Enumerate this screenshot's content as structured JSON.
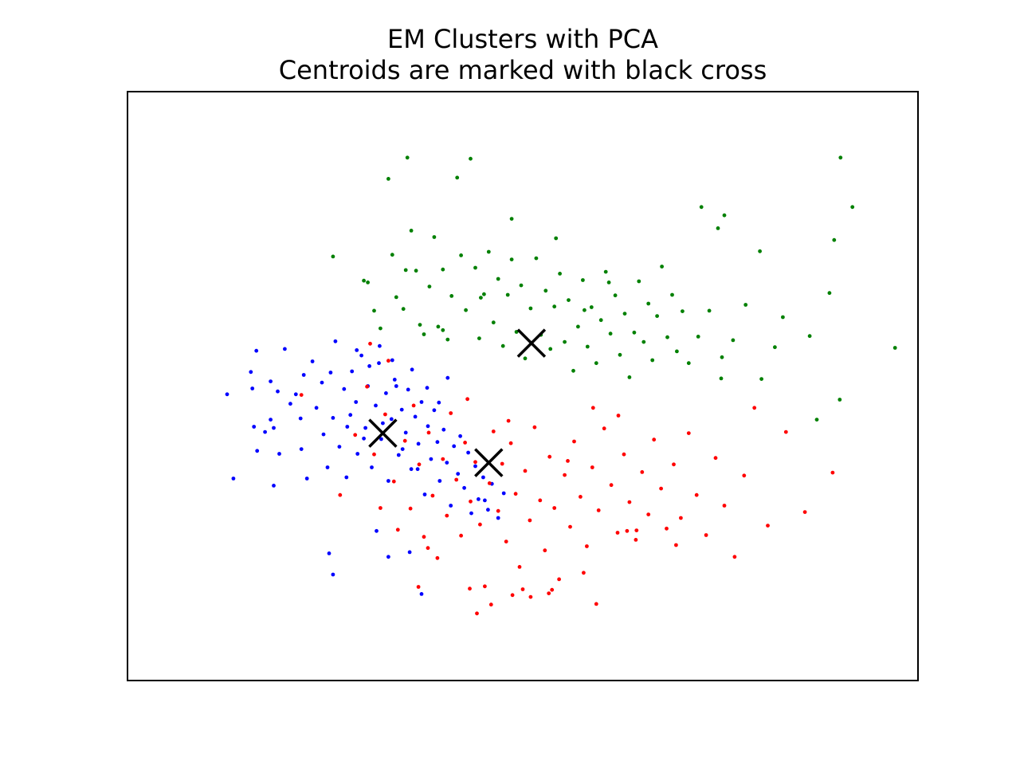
{
  "chart_data": {
    "type": "scatter",
    "title": "EM Clusters with PCA",
    "subtitle": "Centroids are marked with black cross",
    "xlabel": "",
    "ylabel": "",
    "xticks": false,
    "yticks": false,
    "grid": false,
    "legend": "none",
    "xlim": [
      0,
      100
    ],
    "ylim": [
      0,
      100
    ],
    "series": [
      {
        "color": "#0000ff",
        "points": [
          [
            12.6,
            48.6
          ],
          [
            13.4,
            34.3
          ],
          [
            15.8,
            49.6
          ],
          [
            15.6,
            52.4
          ],
          [
            16.0,
            43.1
          ],
          [
            16.4,
            39.0
          ],
          [
            16.3,
            56.0
          ],
          [
            17.4,
            42.2
          ],
          [
            18.1,
            44.3
          ],
          [
            18.1,
            50.8
          ],
          [
            18.5,
            33.1
          ],
          [
            18.5,
            42.9
          ],
          [
            19.0,
            49.1
          ],
          [
            19.2,
            38.5
          ],
          [
            19.9,
            56.3
          ],
          [
            20.6,
            47.0
          ],
          [
            21.3,
            48.6
          ],
          [
            21.9,
            44.5
          ],
          [
            22.3,
            51.9
          ],
          [
            22.0,
            39.3
          ],
          [
            22.7,
            34.3
          ],
          [
            23.4,
            54.2
          ],
          [
            23.9,
            46.3
          ],
          [
            24.6,
            50.6
          ],
          [
            24.8,
            41.8
          ],
          [
            25.3,
            36.2
          ],
          [
            25.7,
            52.3
          ],
          [
            26.0,
            44.6
          ],
          [
            26.3,
            57.6
          ],
          [
            26.8,
            39.7
          ],
          [
            27.4,
            49.5
          ],
          [
            27.7,
            34.5
          ],
          [
            27.8,
            43.1
          ],
          [
            28.4,
            52.5
          ],
          [
            28.9,
            47.3
          ],
          [
            29.1,
            38.5
          ],
          [
            29.6,
            55.2
          ],
          [
            30.1,
            42.9
          ],
          [
            30.4,
            50.0
          ],
          [
            30.9,
            36.2
          ],
          [
            31.4,
            46.7
          ],
          [
            31.8,
            53.9
          ],
          [
            32.1,
            41.0
          ],
          [
            32.7,
            48.8
          ],
          [
            33.0,
            33.9
          ],
          [
            33.4,
            44.4
          ],
          [
            33.8,
            51.1
          ],
          [
            34.3,
            38.3
          ],
          [
            34.7,
            46.0
          ],
          [
            35.2,
            42.1
          ],
          [
            35.5,
            49.4
          ],
          [
            35.9,
            35.9
          ],
          [
            36.4,
            44.8
          ],
          [
            36.8,
            40.2
          ],
          [
            37.2,
            47.3
          ],
          [
            37.6,
            31.6
          ],
          [
            38.0,
            43.2
          ],
          [
            38.4,
            37.6
          ],
          [
            38.8,
            45.9
          ],
          [
            39.2,
            40.5
          ],
          [
            39.5,
            33.9
          ],
          [
            40.0,
            42.6
          ],
          [
            40.4,
            37.0
          ],
          [
            40.9,
            29.7
          ],
          [
            41.3,
            39.8
          ],
          [
            41.8,
            35.1
          ],
          [
            42.1,
            41.5
          ],
          [
            42.6,
            32.7
          ],
          [
            43.1,
            38.7
          ],
          [
            43.5,
            28.4
          ],
          [
            44.0,
            36.4
          ],
          [
            44.4,
            30.8
          ],
          [
            45.0,
            34.5
          ],
          [
            45.6,
            29.0
          ],
          [
            46.1,
            33.4
          ],
          [
            46.9,
            27.6
          ],
          [
            47.6,
            31.8
          ],
          [
            25.5,
            21.6
          ],
          [
            26.0,
            18.0
          ],
          [
            31.5,
            25.4
          ],
          [
            33.0,
            21.0
          ],
          [
            35.7,
            21.8
          ],
          [
            37.2,
            14.7
          ],
          [
            45.2,
            30.6
          ],
          [
            29.0,
            56.1
          ],
          [
            30.6,
            53.4
          ],
          [
            31.9,
            56.8
          ],
          [
            33.5,
            54.4
          ],
          [
            34.0,
            50.0
          ],
          [
            36.0,
            52.8
          ],
          [
            37.9,
            49.7
          ],
          [
            39.4,
            47.2
          ],
          [
            40.5,
            51.4
          ],
          [
            28.2,
            45.1
          ],
          [
            29.9,
            41.1
          ],
          [
            32.3,
            43.7
          ],
          [
            34.8,
            39.3
          ],
          [
            36.7,
            35.9
          ]
        ]
      },
      {
        "color": "#ff0000",
        "points": [
          [
            22.0,
            48.5
          ],
          [
            26.9,
            31.5
          ],
          [
            28.8,
            41.7
          ],
          [
            30.3,
            49.9
          ],
          [
            31.2,
            38.4
          ],
          [
            32.0,
            29.3
          ],
          [
            32.6,
            45.2
          ],
          [
            33.7,
            33.8
          ],
          [
            34.2,
            25.6
          ],
          [
            35.1,
            40.7
          ],
          [
            35.8,
            29.2
          ],
          [
            36.2,
            46.7
          ],
          [
            36.9,
            36.7
          ],
          [
            37.5,
            24.4
          ],
          [
            38.1,
            42.1
          ],
          [
            38.6,
            31.4
          ],
          [
            39.2,
            20.8
          ],
          [
            39.9,
            37.6
          ],
          [
            40.4,
            28.0
          ],
          [
            40.9,
            45.4
          ],
          [
            41.6,
            34.1
          ],
          [
            42.2,
            24.6
          ],
          [
            42.7,
            40.4
          ],
          [
            43.4,
            30.4
          ],
          [
            44.0,
            37.1
          ],
          [
            44.6,
            26.5
          ],
          [
            45.2,
            16.0
          ],
          [
            45.8,
            33.5
          ],
          [
            46.3,
            42.3
          ],
          [
            46.9,
            28.8
          ],
          [
            47.4,
            36.8
          ],
          [
            47.9,
            23.6
          ],
          [
            48.5,
            40.3
          ],
          [
            49.1,
            31.7
          ],
          [
            49.6,
            19.3
          ],
          [
            50.3,
            35.6
          ],
          [
            50.9,
            27.2
          ],
          [
            51.5,
            43.0
          ],
          [
            52.2,
            30.6
          ],
          [
            52.8,
            22.1
          ],
          [
            53.4,
            38.0
          ],
          [
            54.0,
            29.3
          ],
          [
            54.6,
            17.2
          ],
          [
            55.3,
            34.9
          ],
          [
            56.0,
            26.1
          ],
          [
            56.5,
            40.6
          ],
          [
            57.3,
            31.2
          ],
          [
            58.1,
            22.8
          ],
          [
            58.8,
            36.2
          ],
          [
            59.6,
            28.9
          ],
          [
            60.3,
            42.8
          ],
          [
            61.2,
            33.2
          ],
          [
            62.0,
            25.1
          ],
          [
            62.8,
            38.4
          ],
          [
            63.5,
            30.3
          ],
          [
            64.3,
            23.9
          ],
          [
            65.1,
            35.4
          ],
          [
            65.9,
            28.2
          ],
          [
            66.6,
            40.9
          ],
          [
            67.5,
            32.6
          ],
          [
            68.2,
            25.8
          ],
          [
            69.1,
            36.7
          ],
          [
            70.0,
            27.6
          ],
          [
            71.0,
            42.0
          ],
          [
            72.0,
            31.5
          ],
          [
            73.2,
            24.7
          ],
          [
            74.4,
            37.8
          ],
          [
            75.5,
            29.7
          ],
          [
            76.8,
            21.0
          ],
          [
            78.0,
            34.8
          ],
          [
            79.3,
            46.3
          ],
          [
            81.0,
            26.3
          ],
          [
            83.3,
            42.2
          ],
          [
            85.7,
            28.6
          ],
          [
            89.2,
            35.3
          ],
          [
            46.0,
            12.9
          ],
          [
            50.0,
            15.5
          ],
          [
            53.3,
            14.8
          ],
          [
            57.7,
            18.3
          ],
          [
            36.8,
            15.9
          ],
          [
            38.0,
            22.5
          ],
          [
            43.3,
            15.6
          ],
          [
            44.2,
            11.4
          ],
          [
            48.7,
            14.5
          ],
          [
            51.0,
            14.2
          ],
          [
            53.7,
            15.4
          ],
          [
            59.3,
            13.0
          ],
          [
            64.4,
            25.5
          ],
          [
            69.4,
            23.0
          ],
          [
            63.2,
            25.4
          ],
          [
            55.7,
            37.3
          ],
          [
            48.2,
            44.1
          ],
          [
            43.0,
            47.8
          ],
          [
            33.0,
            54.3
          ],
          [
            30.7,
            57.2
          ],
          [
            58.9,
            46.3
          ],
          [
            62.1,
            45.0
          ]
        ]
      },
      {
        "color": "#008000",
        "points": [
          [
            26.0,
            72.0
          ],
          [
            29.9,
            67.9
          ],
          [
            30.4,
            67.6
          ],
          [
            31.2,
            62.8
          ],
          [
            32.0,
            59.8
          ],
          [
            33.0,
            85.2
          ],
          [
            33.5,
            72.3
          ],
          [
            34.0,
            65.1
          ],
          [
            34.9,
            63.1
          ],
          [
            35.4,
            88.8
          ],
          [
            35.9,
            76.4
          ],
          [
            36.5,
            69.6
          ],
          [
            37.0,
            60.4
          ],
          [
            37.5,
            58.8
          ],
          [
            38.2,
            66.9
          ],
          [
            38.8,
            75.3
          ],
          [
            39.3,
            60.1
          ],
          [
            39.9,
            69.8
          ],
          [
            40.5,
            57.9
          ],
          [
            41.0,
            65.3
          ],
          [
            41.7,
            85.4
          ],
          [
            42.2,
            72.2
          ],
          [
            42.8,
            62.9
          ],
          [
            43.4,
            88.6
          ],
          [
            44.0,
            70.1
          ],
          [
            44.5,
            58.1
          ],
          [
            45.1,
            65.6
          ],
          [
            45.7,
            72.8
          ],
          [
            46.3,
            60.8
          ],
          [
            46.9,
            68.2
          ],
          [
            47.5,
            56.8
          ],
          [
            48.1,
            65.5
          ],
          [
            48.6,
            71.5
          ],
          [
            49.2,
            59.2
          ],
          [
            49.8,
            67.1
          ],
          [
            50.3,
            54.7
          ],
          [
            51.0,
            63.2
          ],
          [
            51.7,
            71.7
          ],
          [
            52.3,
            58.7
          ],
          [
            52.9,
            66.2
          ],
          [
            53.5,
            56.3
          ],
          [
            54.0,
            63.5
          ],
          [
            54.7,
            69.1
          ],
          [
            55.3,
            57.5
          ],
          [
            55.8,
            64.6
          ],
          [
            56.4,
            52.6
          ],
          [
            57.0,
            60.1
          ],
          [
            57.6,
            68.0
          ],
          [
            58.2,
            56.7
          ],
          [
            58.7,
            63.4
          ],
          [
            59.3,
            53.9
          ],
          [
            59.9,
            61.2
          ],
          [
            60.5,
            69.4
          ],
          [
            61.1,
            58.9
          ],
          [
            61.7,
            65.4
          ],
          [
            62.3,
            55.3
          ],
          [
            62.9,
            62.3
          ],
          [
            63.5,
            51.5
          ],
          [
            64.1,
            59.1
          ],
          [
            64.7,
            67.8
          ],
          [
            65.3,
            57.5
          ],
          [
            65.9,
            64.0
          ],
          [
            66.4,
            54.4
          ],
          [
            67.0,
            61.9
          ],
          [
            67.6,
            70.3
          ],
          [
            68.3,
            58.3
          ],
          [
            68.9,
            65.5
          ],
          [
            69.5,
            55.9
          ],
          [
            70.2,
            62.7
          ],
          [
            71.0,
            53.9
          ],
          [
            72.2,
            58.4
          ],
          [
            73.6,
            62.8
          ],
          [
            75.1,
            51.3
          ],
          [
            76.6,
            57.8
          ],
          [
            78.2,
            63.8
          ],
          [
            80.2,
            51.2
          ],
          [
            81.9,
            56.6
          ],
          [
            72.6,
            80.4
          ],
          [
            74.7,
            76.8
          ],
          [
            75.5,
            79.0
          ],
          [
            80.0,
            72.9
          ],
          [
            82.9,
            61.7
          ],
          [
            86.3,
            58.5
          ],
          [
            88.8,
            65.8
          ],
          [
            89.4,
            74.8
          ],
          [
            90.1,
            47.7
          ],
          [
            97.1,
            56.5
          ],
          [
            91.7,
            80.4
          ],
          [
            90.2,
            88.8
          ],
          [
            87.2,
            44.3
          ],
          [
            75.2,
            54.9
          ],
          [
            57.8,
            62.9
          ],
          [
            60.9,
            67.6
          ],
          [
            54.2,
            75.1
          ],
          [
            48.6,
            78.4
          ],
          [
            44.7,
            65.0
          ],
          [
            39.9,
            59.5
          ],
          [
            35.2,
            69.7
          ]
        ]
      }
    ],
    "centroids": [
      [
        51.1,
        57.3
      ],
      [
        32.3,
        42.0
      ],
      [
        45.7,
        37.0
      ]
    ],
    "centroid_color": "#000000"
  }
}
